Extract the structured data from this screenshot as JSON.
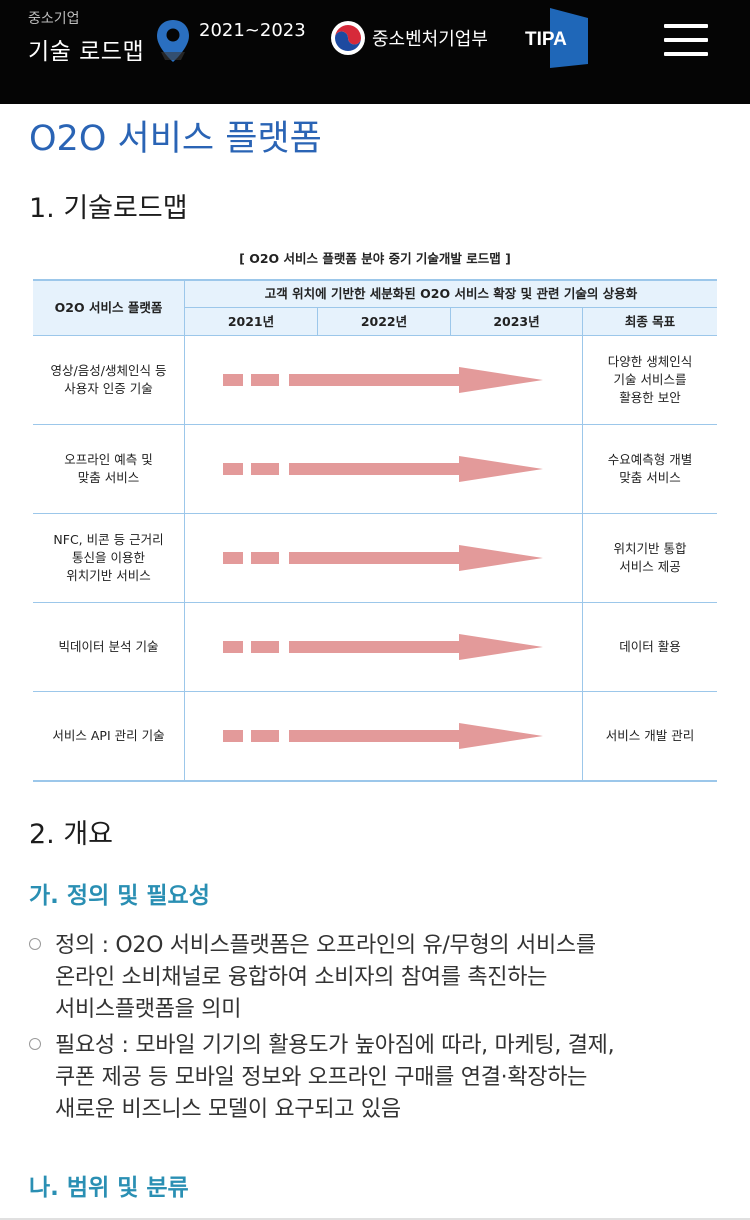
{
  "header": {
    "logo_small": "중소기업",
    "logo_main": "기술 로드맵",
    "years": "2021~2023",
    "ministry": "중소벤처기업부",
    "agency": "TIPA",
    "icons": [
      "location-pin-icon",
      "taegeuk-emblem-icon",
      "menu-icon"
    ],
    "colors": {
      "background": "#050505",
      "pin": "#2a6fc0",
      "agency": "#1f67b8"
    }
  },
  "page": {
    "title": "O2O 서비스 플랫폼",
    "section1": "1. 기술로드맵",
    "section2": "2. 개요",
    "sub_a": "가. 정의 및 필요성",
    "sub_b": "나. 범위 및 분류"
  },
  "roadmap": {
    "caption": "[ O2O 서비스 플랫폼 분야 중기 기술개발 로드맵 ]",
    "row_header": "O2O 서비스 플랫폼",
    "goal": "고객 위치에 기반한 세분화된 O2O 서비스 확장 및 관련 기술의 상용화",
    "years": [
      "2021년",
      "2022년",
      "2023년"
    ],
    "final_header": "최종 목표",
    "rows": [
      {
        "tech": [
          "영상/음성/생체인식 등",
          "사용자 인증 기술"
        ],
        "target": [
          "다양한 생체인식",
          "기술 서비스를",
          "활용한 보안"
        ]
      },
      {
        "tech": [
          "오프라인 예측 및",
          "맞춤 서비스"
        ],
        "target": [
          "수요예측형 개별",
          "맞춤 서비스"
        ]
      },
      {
        "tech": [
          "NFC, 비콘 등 근거리",
          "통신을 이용한",
          "위치기반 서비스"
        ],
        "target": [
          "위치기반 통합",
          "서비스 제공"
        ]
      },
      {
        "tech": [
          "빅데이터 분석 기술"
        ],
        "target": [
          "데이터 활용"
        ]
      },
      {
        "tech": [
          "서비스 API 관리 기술"
        ],
        "target": [
          "서비스 개발 관리"
        ]
      }
    ],
    "colors": {
      "border": "#9cc7ea",
      "header_bg": "#e6f2fc",
      "arrow": "#e39a9a"
    }
  },
  "overview": {
    "bullets": [
      {
        "lines": [
          "정의 : O2O 서비스플랫폼은 오프라인의 유/무형의 서비스를",
          "온라인 소비채널로 융합하여 소비자의 참여를 촉진하는",
          "서비스플랫폼을 의미"
        ]
      },
      {
        "lines": [
          "필요성 : 모바일 기기의 활용도가 높아짐에 따라, 마케팅, 결제,",
          "쿠폰 제공 등 모바일 정보와 오프라인 구매를 연결·확장하는",
          "새로운 비즈니스 모델이 요구되고 있음"
        ]
      }
    ]
  }
}
